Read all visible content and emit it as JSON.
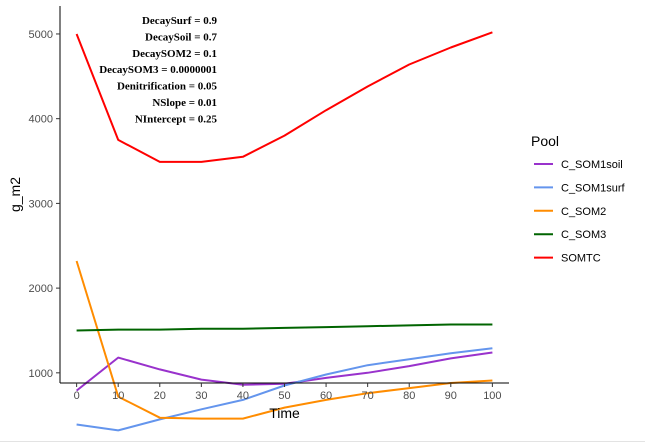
{
  "chart_data": {
    "type": "line",
    "xlabel": "Time",
    "ylabel": "g_m2",
    "xlim": [
      -4,
      104
    ],
    "ylim": [
      880,
      5330
    ],
    "x_ticks": [
      0,
      10,
      20,
      30,
      40,
      50,
      60,
      70,
      80,
      90,
      100
    ],
    "y_ticks": [
      1000,
      2000,
      3000,
      4000,
      5000
    ],
    "x": [
      0,
      10,
      20,
      30,
      40,
      50,
      60,
      70,
      80,
      90,
      100
    ],
    "legend": {
      "title": "Pool",
      "position": "right"
    },
    "grid": false,
    "series": [
      {
        "name": "C_SOM1soil",
        "color": "#9932CC",
        "values": [
          790,
          1180,
          1040,
          920,
          860,
          870,
          940,
          1000,
          1080,
          1170,
          1240
        ]
      },
      {
        "name": "C_SOM1surf",
        "color": "#6495ED",
        "values": [
          390,
          320,
          450,
          570,
          680,
          850,
          980,
          1090,
          1160,
          1230,
          1290
        ]
      },
      {
        "name": "C_SOM2",
        "color": "#FF8C00",
        "values": [
          2320,
          720,
          470,
          460,
          460,
          590,
          680,
          760,
          820,
          880,
          910
        ]
      },
      {
        "name": "C_SOM3",
        "color": "#006400",
        "values": [
          1500,
          1510,
          1510,
          1520,
          1520,
          1530,
          1540,
          1550,
          1560,
          1570,
          1570
        ]
      },
      {
        "name": "SOMTC",
        "color": "#FF0000",
        "values": [
          5000,
          3750,
          3490,
          3490,
          3550,
          3800,
          4100,
          4380,
          4640,
          4840,
          5020
        ]
      }
    ],
    "annotations": [
      "DecaySurf = 0.9",
      "DecaySoil = 0.7",
      "DecaySOM2 = 0.1",
      "DecaySOM3 = 0.0000001",
      "Denitrification = 0.05",
      "NSlope = 0.01",
      "NIntercept = 0.25"
    ]
  }
}
